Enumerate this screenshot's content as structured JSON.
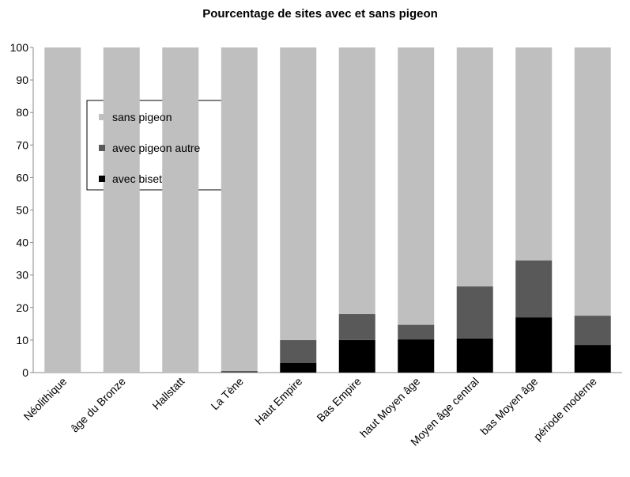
{
  "chart_data": {
    "type": "stacked_bar",
    "title": "Pourcentage de sites avec et sans pigeon",
    "categories": [
      "Néolithique",
      "âge du Bronze",
      "Hallstatt",
      "La Tène",
      "Haut Empire",
      "Bas Empire",
      "haut Moyen âge",
      "Moyen âge central",
      "bas Moyen âge",
      "période moderne"
    ],
    "series": [
      {
        "name": "avec biset",
        "color": "#000000",
        "values": [
          0,
          0,
          0,
          0,
          3,
          10,
          10.2,
          10.5,
          17,
          8.5
        ]
      },
      {
        "name": "avec pigeon autre",
        "color": "#595959",
        "values": [
          0,
          0,
          0,
          0.5,
          7,
          8,
          4.5,
          16,
          17.5,
          9
        ]
      },
      {
        "name": "sans pigeon",
        "color": "#bfbfbf",
        "values": [
          100,
          100,
          100,
          99.5,
          90,
          82,
          85.3,
          73.5,
          65.5,
          82.5
        ]
      }
    ],
    "ylim": [
      0,
      100
    ],
    "yticks": [
      0,
      10,
      20,
      30,
      40,
      50,
      60,
      70,
      80,
      90,
      100
    ],
    "grid": false,
    "legend": "upper left"
  }
}
